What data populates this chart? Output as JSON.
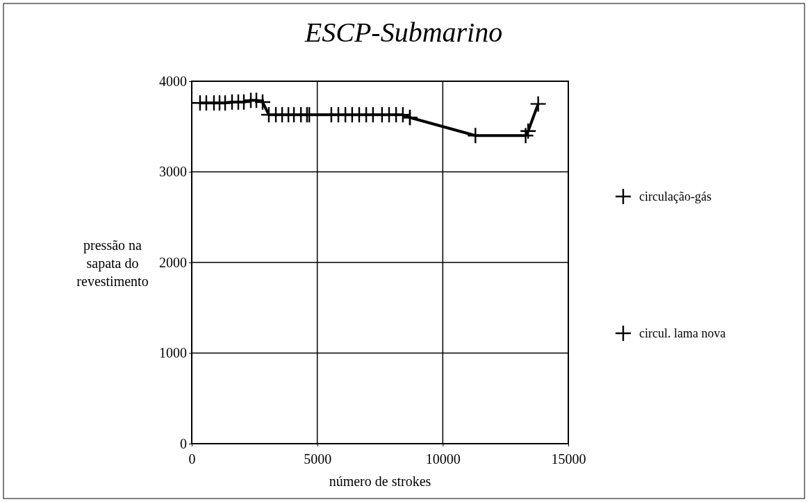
{
  "chart_data": {
    "type": "line",
    "title": "ESCP-Submarino",
    "xlabel": "número de strokes",
    "ylabel": "pressão na sapata do revestimento",
    "xlim": [
      0,
      15000
    ],
    "xticks": [
      0,
      5000,
      10000,
      15000
    ],
    "ylim": [
      0,
      4000
    ],
    "yticks": [
      0,
      1000,
      2000,
      3000,
      4000
    ],
    "grid": true,
    "legend": "right",
    "marker": "cross",
    "line_style": "solid",
    "series": [
      {
        "name": "circulação-gás",
        "color": "#000000",
        "x": [
          330,
          580,
          885,
          1107,
          1329,
          1605,
          1854,
          2076,
          2353,
          2574,
          2823,
          3070,
          3350,
          3600,
          3850,
          4070,
          4350,
          4590,
          4680,
          5560,
          5840,
          6120,
          6390,
          6670,
          6950,
          7220,
          7580,
          7860,
          8140,
          8410,
          8690
        ],
        "values": [
          3760,
          3760,
          3760,
          3760,
          3760,
          3770,
          3770,
          3770,
          3790,
          3790,
          3770,
          3630,
          3630,
          3630,
          3630,
          3630,
          3630,
          3630,
          3630,
          3630,
          3630,
          3630,
          3630,
          3630,
          3630,
          3630,
          3630,
          3630,
          3630,
          3630,
          3600
        ]
      },
      {
        "name": "circul. lama nova",
        "color": "#000000",
        "x": [
          8690,
          11300,
          13300,
          13400,
          13800
        ],
        "values": [
          3600,
          3400,
          3400,
          3450,
          3750
        ]
      }
    ]
  }
}
